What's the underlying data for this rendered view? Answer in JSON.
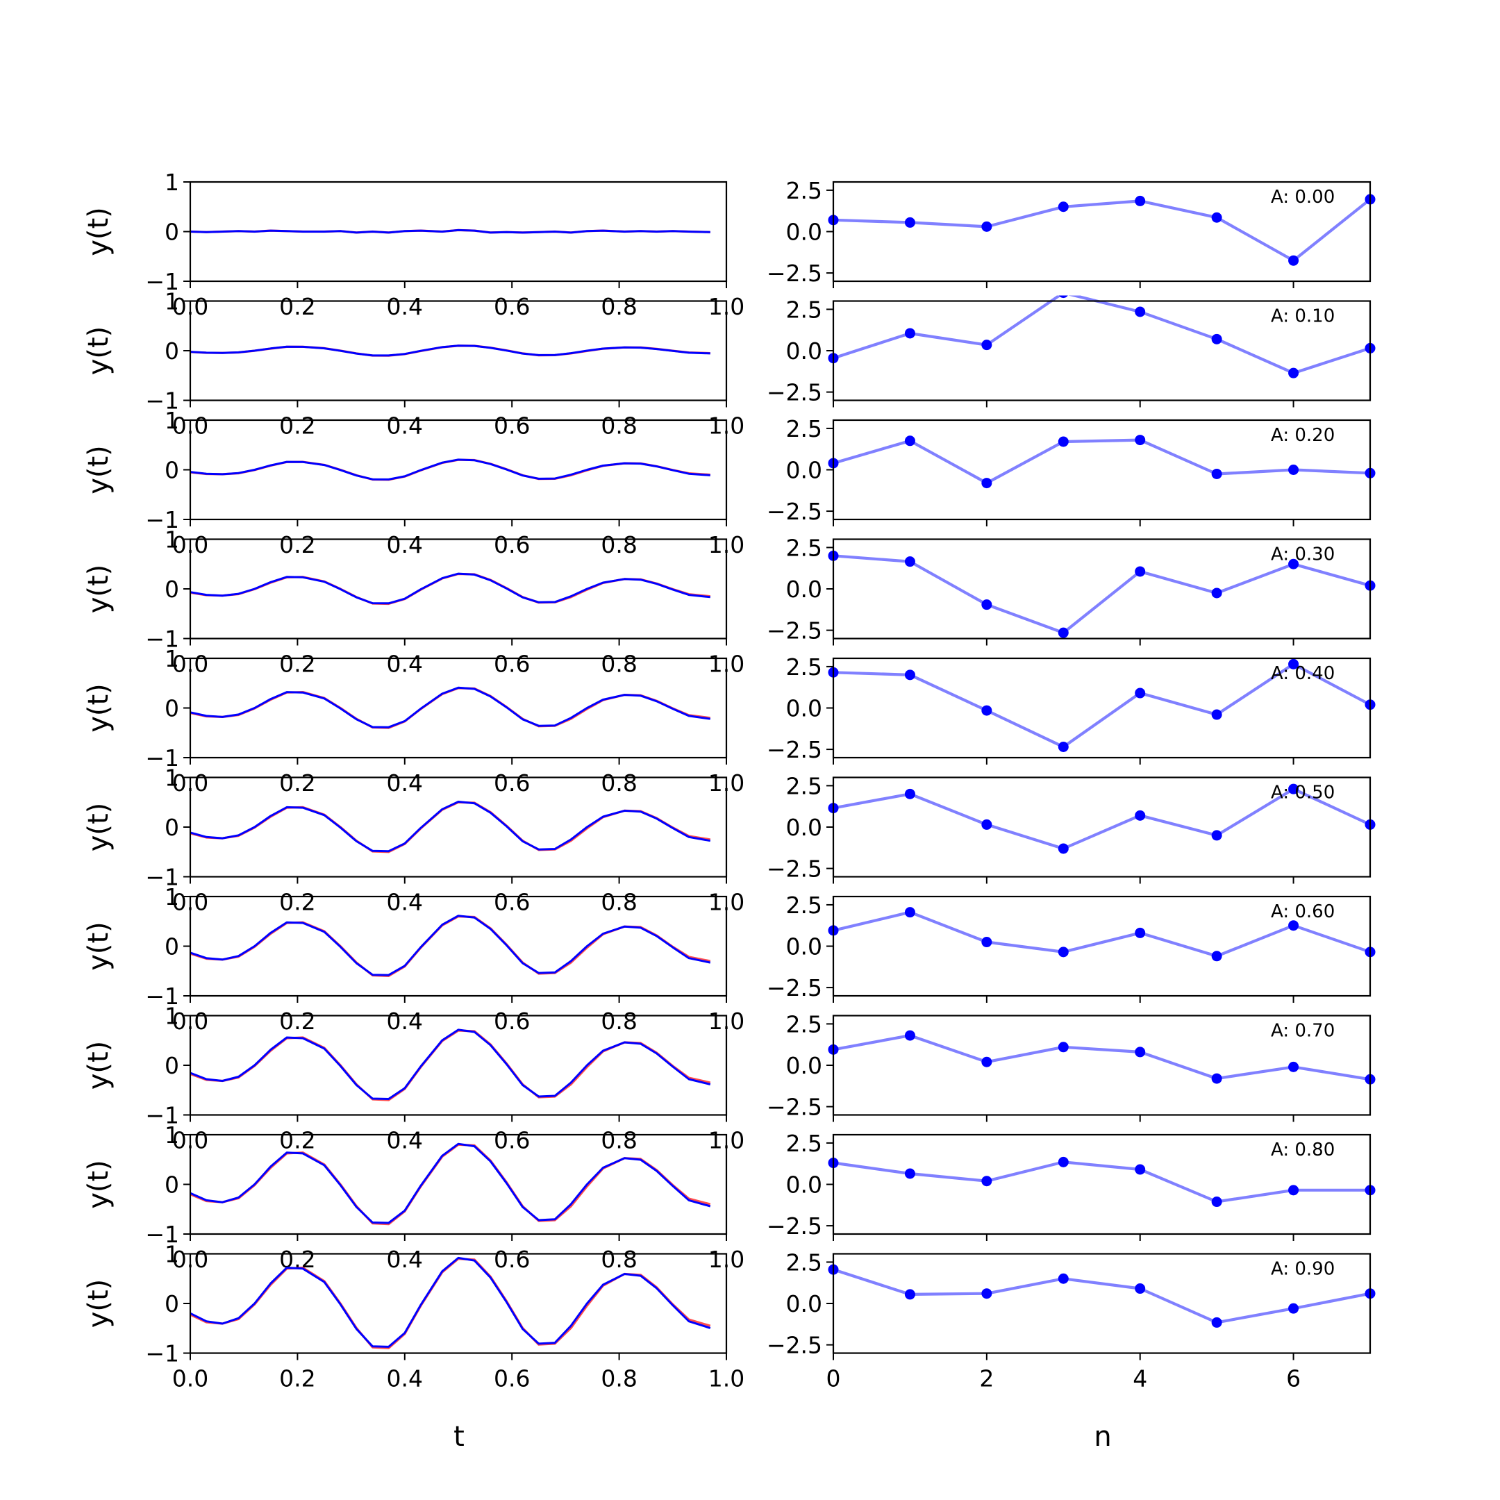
{
  "figure": {
    "left_xlabel": "t",
    "right_xlabel": "n",
    "left_ylabel": "y(t)"
  },
  "colors": {
    "signal_red": "#ff0000",
    "signal_blue": "#0000ff",
    "points_blue": "#0000ff",
    "points_line": "#8080ff",
    "axes": "#000000"
  },
  "chart_data": [
    {
      "type": "line",
      "panel": "left",
      "x_tick_labels": [
        "0.0",
        "0.2",
        "0.4",
        "0.6",
        "0.8",
        "1.0"
      ],
      "x_ticks": [
        0.0,
        0.2,
        0.4,
        0.6,
        0.8,
        1.0
      ],
      "y_tick_labels": [
        "−1",
        "0",
        "1"
      ],
      "y_ticks": [
        -1,
        0,
        1
      ],
      "xlim": [
        0.0,
        1.0
      ],
      "ylim": [
        -1,
        1
      ],
      "xlabel": "t",
      "ylabel": "y(t)",
      "grid": false,
      "series": [
        {
          "color": "#ff0000",
          "x": [
            0.0,
            0.03,
            0.06,
            0.09,
            0.12,
            0.15,
            0.18,
            0.21,
            0.25,
            0.28,
            0.31,
            0.34,
            0.37,
            0.4,
            0.43,
            0.47,
            0.5,
            0.53,
            0.56,
            0.59,
            0.62,
            0.65,
            0.68,
            0.71,
            0.74,
            0.77,
            0.81,
            0.84,
            0.87,
            0.9,
            0.93,
            0.97
          ],
          "y_profile": [
            -0.25,
            -0.42,
            -0.45,
            -0.35,
            -0.02,
            0.42,
            0.78,
            0.8,
            0.5,
            0.0,
            -0.55,
            -0.98,
            -1.0,
            -0.68,
            -0.05,
            0.7,
            1.0,
            0.98,
            0.6,
            0.05,
            -0.55,
            -0.92,
            -0.9,
            -0.55,
            -0.05,
            0.4,
            0.66,
            0.64,
            0.36,
            -0.02,
            -0.36,
            -0.5
          ]
        },
        {
          "color": "#0000ff",
          "x": [
            0.0,
            0.03,
            0.06,
            0.09,
            0.12,
            0.15,
            0.18,
            0.21,
            0.25,
            0.28,
            0.31,
            0.34,
            0.37,
            0.4,
            0.43,
            0.47,
            0.5,
            0.53,
            0.56,
            0.59,
            0.62,
            0.65,
            0.68,
            0.71,
            0.74,
            0.77,
            0.81,
            0.84,
            0.87,
            0.9,
            0.93,
            0.97
          ],
          "y_profile": [
            -0.22,
            -0.4,
            -0.45,
            -0.33,
            0.0,
            0.45,
            0.8,
            0.78,
            0.48,
            -0.02,
            -0.57,
            -0.96,
            -0.97,
            -0.66,
            -0.03,
            0.72,
            1.02,
            0.96,
            0.58,
            0.03,
            -0.57,
            -0.9,
            -0.88,
            -0.5,
            0.0,
            0.42,
            0.66,
            0.62,
            0.34,
            -0.04,
            -0.4,
            -0.55
          ]
        }
      ],
      "rows": [
        {
          "amplitude": 0.0,
          "noise": [
            0.0,
            -0.01,
            0.0,
            0.01,
            0.0,
            0.02,
            0.01,
            0.0,
            0.0,
            0.01,
            -0.02,
            0.0,
            -0.02,
            0.01,
            0.02,
            0.0,
            0.03,
            0.02,
            -0.02,
            -0.01,
            -0.02,
            -0.01,
            0.0,
            -0.02,
            0.01,
            0.02,
            0.0,
            0.01,
            0.0,
            0.01,
            0.0,
            -0.01
          ]
        },
        {
          "amplitude": 0.1
        },
        {
          "amplitude": 0.2
        },
        {
          "amplitude": 0.3
        },
        {
          "amplitude": 0.4
        },
        {
          "amplitude": 0.5
        },
        {
          "amplitude": 0.6
        },
        {
          "amplitude": 0.7
        },
        {
          "amplitude": 0.8
        },
        {
          "amplitude": 0.9
        }
      ]
    },
    {
      "type": "line",
      "panel": "right",
      "x_tick_labels": [
        "0",
        "2",
        "4",
        "6"
      ],
      "x_ticks": [
        0,
        2,
        4,
        6
      ],
      "y_tick_labels": [
        "−2.5",
        "0.0",
        "2.5"
      ],
      "y_ticks": [
        -2.5,
        0.0,
        2.5
      ],
      "xlim": [
        0,
        7
      ],
      "ylim": [
        -3.0,
        3.0
      ],
      "xlabel": "n",
      "grid": false,
      "x": [
        0,
        1,
        2,
        3,
        4,
        5,
        6,
        7
      ],
      "rows": [
        {
          "label": "A: 0.00",
          "values": [
            0.7,
            0.55,
            0.3,
            1.5,
            1.85,
            0.85,
            -1.75,
            1.95
          ]
        },
        {
          "label": "A: 0.10",
          "values": [
            -0.45,
            1.05,
            0.35,
            3.5,
            2.35,
            0.7,
            -1.35,
            0.15
          ]
        },
        {
          "label": "A: 0.20",
          "values": [
            0.4,
            1.75,
            -0.8,
            1.7,
            1.8,
            -0.25,
            0.0,
            -0.2
          ]
        },
        {
          "label": "A: 0.30",
          "values": [
            2.0,
            1.65,
            -0.95,
            -2.65,
            1.05,
            -0.25,
            1.5,
            0.2
          ]
        },
        {
          "label": "A: 0.40",
          "values": [
            2.15,
            2.0,
            -0.15,
            -2.35,
            0.9,
            -0.4,
            2.65,
            0.2
          ]
        },
        {
          "label": "A: 0.50",
          "values": [
            1.15,
            2.0,
            0.15,
            -1.3,
            0.7,
            -0.5,
            2.3,
            0.15
          ]
        },
        {
          "label": "A: 0.60",
          "values": [
            0.95,
            2.05,
            0.25,
            -0.35,
            0.8,
            -0.6,
            1.25,
            -0.35
          ]
        },
        {
          "label": "A: 0.70",
          "values": [
            0.95,
            1.8,
            0.2,
            1.1,
            0.8,
            -0.8,
            -0.1,
            -0.85
          ]
        },
        {
          "label": "A: 0.80",
          "values": [
            1.3,
            0.65,
            0.2,
            1.35,
            0.9,
            -1.05,
            -0.35,
            -0.35
          ]
        },
        {
          "label": "A: 0.90",
          "values": [
            2.05,
            0.55,
            0.6,
            1.5,
            0.9,
            -1.15,
            -0.3,
            0.6
          ]
        }
      ]
    }
  ]
}
